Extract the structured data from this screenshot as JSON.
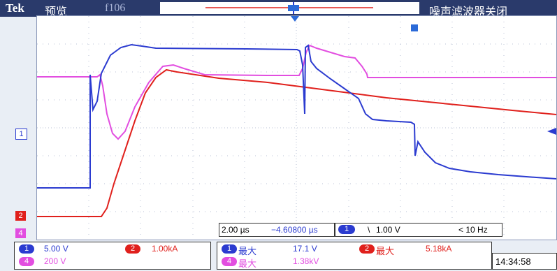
{
  "header": {
    "brand": "Tek",
    "mode": "预览",
    "record_label": "f106",
    "noise_filter": "噪声滤波器关闭"
  },
  "markers": {
    "ch1": "1",
    "ch2": "2",
    "ch4": "4",
    "trigger": "T"
  },
  "timebase": {
    "scale": "2.00 µs",
    "position": "−4.60800 µs"
  },
  "trigger": {
    "channel": "1",
    "slope": "\\",
    "level": "1.00 V",
    "freq": "< 10 Hz"
  },
  "channels": [
    {
      "id": "1",
      "scale": "5.00 V",
      "color": "#2b3bd0"
    },
    {
      "id": "2",
      "scale": "1.00kA",
      "color": "#e0201c"
    },
    {
      "id": "4",
      "scale": "200 V",
      "color": "#e24ee0"
    }
  ],
  "measurements": [
    {
      "ch": "1",
      "label": "最大",
      "value": "17.1 V"
    },
    {
      "ch": "2",
      "label": "最大",
      "value": "5.18kA"
    },
    {
      "ch": "4",
      "label": "最大",
      "value": "1.38kV"
    }
  ],
  "clock": "14:34:58",
  "colors": {
    "ch1": "#2b3bd0",
    "ch2": "#e0201c",
    "ch4": "#e24ee0",
    "header": "#2a3a6b"
  }
}
